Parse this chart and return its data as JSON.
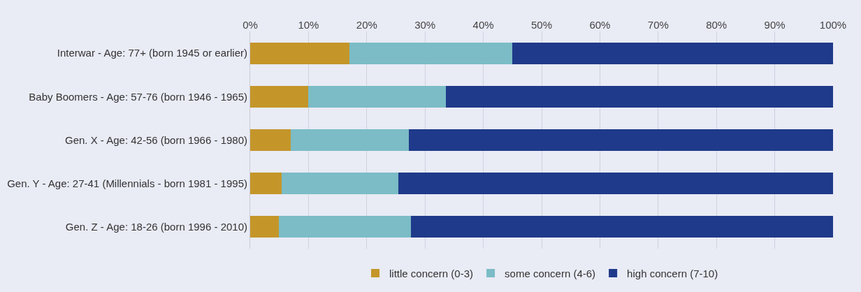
{
  "chart_data": {
    "type": "bar",
    "orientation": "horizontal",
    "stacked": true,
    "categories": [
      "Interwar - Age: 77+ (born 1945 or earlier)",
      "Baby Boomers - Age: 57-76 (born 1946 - 1965)",
      "Gen. X - Age: 42-56 (born 1966 - 1980)",
      "Gen. Y - Age: 27-41 (Millennials - born 1981 - 1995)",
      "Gen. Z - Age: 18-26 (born 1996 - 2010)"
    ],
    "series": [
      {
        "name": "little concern (0-3)",
        "color": "#c4962a",
        "values": [
          17,
          10,
          7,
          5.4,
          4.9
        ]
      },
      {
        "name": "some concern (4-6)",
        "color": "#7bbcc6",
        "values": [
          28,
          23.6,
          20.2,
          20,
          22.7
        ]
      },
      {
        "name": "high concern (7-10)",
        "color": "#1f3a8a",
        "values": [
          55,
          66.4,
          72.8,
          74.6,
          72.4
        ]
      }
    ],
    "xlim": [
      0,
      100
    ],
    "xticks": [
      {
        "value": 0,
        "label": "0%"
      },
      {
        "value": 10,
        "label": "10%"
      },
      {
        "value": 20,
        "label": "20%"
      },
      {
        "value": 30,
        "label": "30%"
      },
      {
        "value": 40,
        "label": "40%"
      },
      {
        "value": 50,
        "label": "50%"
      },
      {
        "value": 60,
        "label": "60%"
      },
      {
        "value": 70,
        "label": "70%"
      },
      {
        "value": 80,
        "label": "80%"
      },
      {
        "value": 90,
        "label": "90%"
      },
      {
        "value": 100,
        "label": "100%"
      }
    ],
    "grid": "x",
    "legend": "bottom"
  }
}
